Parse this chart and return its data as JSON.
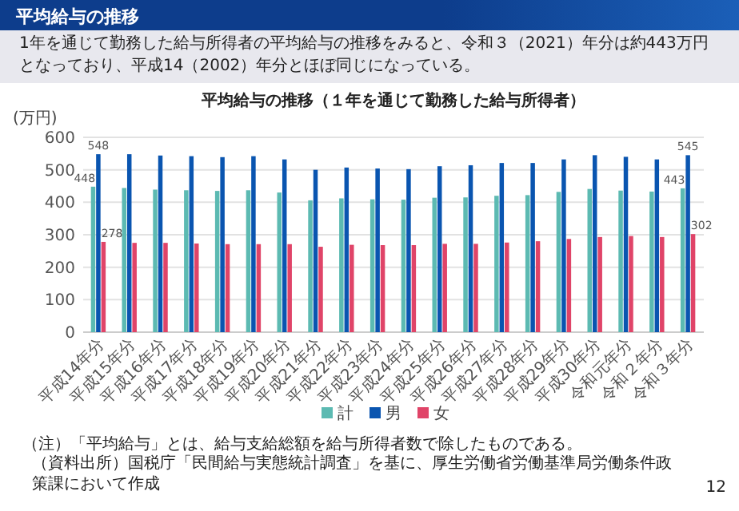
{
  "chart_data": {
    "type": "bar",
    "title": "平均給与の推移（１年を通じて勤務した給与所得者）",
    "ylabel": "(万円)",
    "categories": [
      "平成14年分",
      "平成15年分",
      "平成16年分",
      "平成17年分",
      "平成18年分",
      "平成19年分",
      "平成20年分",
      "平成21年分",
      "平成22年分",
      "平成23年分",
      "平成24年分",
      "平成25年分",
      "平成26年分",
      "平成27年分",
      "平成28年分",
      "平成29年分",
      "平成30年分",
      "令和元年分",
      "令和２年分",
      "令和３年分"
    ],
    "series": [
      {
        "name": "計",
        "color": "#5cbab2",
        "values": [
          448,
          444,
          439,
          437,
          435,
          437,
          430,
          406,
          412,
          409,
          408,
          414,
          415,
          420,
          422,
          432,
          441,
          436,
          433,
          443
        ],
        "value_labels": [
          "448",
          null,
          null,
          null,
          null,
          null,
          null,
          null,
          null,
          null,
          null,
          null,
          null,
          null,
          null,
          null,
          null,
          null,
          null,
          "443"
        ]
      },
      {
        "name": "男",
        "color": "#0a55b0",
        "values": [
          548,
          548,
          544,
          542,
          539,
          542,
          532,
          500,
          507,
          504,
          502,
          511,
          514,
          521,
          521,
          532,
          545,
          540,
          532,
          545
        ],
        "value_labels": [
          "548",
          null,
          null,
          null,
          null,
          null,
          null,
          null,
          null,
          null,
          null,
          null,
          null,
          null,
          null,
          null,
          null,
          null,
          null,
          "545"
        ]
      },
      {
        "name": "女",
        "color": "#e04468",
        "values": [
          278,
          275,
          275,
          273,
          271,
          271,
          271,
          263,
          269,
          268,
          268,
          272,
          272,
          276,
          280,
          287,
          293,
          296,
          293,
          302
        ],
        "value_labels": [
          "278",
          null,
          null,
          null,
          null,
          null,
          null,
          null,
          null,
          null,
          null,
          null,
          null,
          null,
          null,
          null,
          null,
          null,
          null,
          "302"
        ]
      }
    ],
    "ylim": [
      0,
      600
    ],
    "yticks": [
      0,
      100,
      200,
      300,
      400,
      500,
      600
    ],
    "grid": "y",
    "legend": "bottom",
    "annotations": [
      "平均給与の推移",
      "1年を通じて勤務した給与所得者の平均給与の推移をみると、令和３（2021）年分は約443万円となっており、平成14（2002）年分とほぼ同じになっている。",
      "（注）「平均給与」とは、給与支給総額を給与所得者数で除したものである。",
      "（資料出所）国税庁「民間給与実態統計調査」を基に、厚生労働省労働基準局労働条件政策課において作成",
      "12"
    ]
  }
}
